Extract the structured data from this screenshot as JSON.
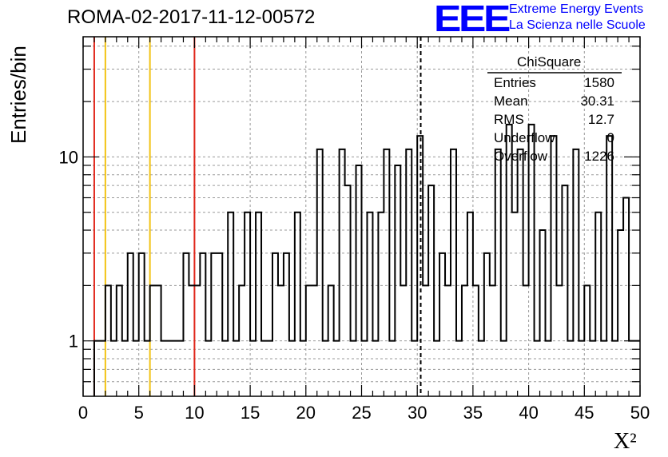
{
  "title": "ROMA-02-2017-11-12-00572",
  "logo": {
    "text": "EEE",
    "line1": "Extreme Energy Events",
    "line2": "La Scienza nelle Scuole",
    "color": "#0000ff"
  },
  "colors": {
    "histogram": "#000000",
    "red_line": "#e0261a",
    "yellow_line": "#f2c314",
    "grid": "#9a9a9a"
  },
  "stats": {
    "title": "ChiSquare",
    "rows": [
      {
        "name": "Entries",
        "value": "1580"
      },
      {
        "name": "Mean",
        "value": "30.31"
      },
      {
        "name": "RMS",
        "value": "12.7"
      },
      {
        "name": "Underflow",
        "value": "0"
      },
      {
        "name": "Overflow",
        "value": "1226"
      }
    ]
  },
  "chart_data": {
    "type": "bar",
    "histogram_style": "step",
    "xlabel": "X²",
    "ylabel": "Entries/bin",
    "xlim": [
      0,
      50
    ],
    "ylim": [
      0.5,
      45
    ],
    "yscale": "log",
    "grid": true,
    "bin_width": 0.5,
    "x_ticks": [
      "0",
      "5",
      "10",
      "15",
      "20",
      "25",
      "30",
      "35",
      "40",
      "45",
      "50"
    ],
    "y_ticks": [
      {
        "value": 1,
        "label": "1"
      },
      {
        "value": 10,
        "label": "10"
      }
    ],
    "values": [
      0,
      0,
      1,
      1,
      2,
      1,
      2,
      1,
      3,
      1,
      3,
      1,
      2,
      2,
      1,
      1,
      1,
      1,
      3,
      2,
      2,
      3,
      1,
      3,
      3,
      1,
      5,
      1,
      2,
      5,
      1,
      5,
      1,
      1,
      3,
      2,
      3,
      1,
      5,
      1,
      2,
      2,
      11,
      1,
      2,
      1,
      11,
      7,
      1,
      9,
      1,
      5,
      1,
      5,
      11,
      1,
      9,
      2,
      11,
      1,
      13,
      2,
      7,
      1,
      3,
      2,
      11,
      1,
      2,
      5,
      2,
      1,
      3,
      2,
      11,
      1,
      15,
      5,
      11,
      2,
      15,
      1,
      4,
      1,
      13,
      2,
      7,
      1,
      11,
      1,
      2,
      1,
      5,
      1,
      13,
      1,
      4,
      6,
      1,
      1
    ],
    "vertical_lines": [
      {
        "x": 1,
        "color": "red"
      },
      {
        "x": 2,
        "color": "yellow"
      },
      {
        "x": 6,
        "color": "yellow"
      },
      {
        "x": 10,
        "color": "red"
      },
      {
        "x": 30.31,
        "style": "dashed",
        "color": "black"
      }
    ]
  }
}
